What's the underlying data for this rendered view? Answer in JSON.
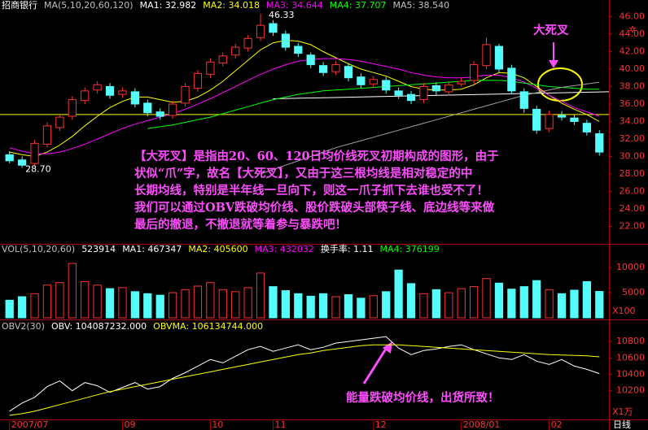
{
  "chart_data": [
    {
      "type": "candlestick",
      "legend": [
        {
          "text": "招商银行",
          "color": "#ffffff"
        },
        {
          "text": "MA(5,10,20,60,120)",
          "color": "#c0c0c0"
        },
        {
          "text": "MA1: 32.982",
          "color": "#ffffff"
        },
        {
          "text": "MA2: 34.018",
          "color": "#ffff00"
        },
        {
          "text": "MA3: 34.644",
          "color": "#ff00ff"
        },
        {
          "text": "MA4: 37.707",
          "color": "#00ff00"
        },
        {
          "text": "MA5: 38.540",
          "color": "#c0c0c0"
        }
      ],
      "xlim": [
        -0.76,
        47.76
      ],
      "ylim": [
        20,
        46.6
      ],
      "yticks": [
        {
          "value": 22,
          "label": "22.00"
        },
        {
          "value": 24,
          "label": "24.00"
        },
        {
          "value": 26,
          "label": "26.00"
        },
        {
          "value": 28,
          "label": "28.00"
        },
        {
          "value": 30,
          "label": "30.00"
        },
        {
          "value": 32,
          "label": "32.00"
        },
        {
          "value": 34,
          "label": "34.00"
        },
        {
          "value": 36,
          "label": "36.00"
        },
        {
          "value": 38,
          "label": "38.00"
        },
        {
          "value": 40,
          "label": "40.00"
        },
        {
          "value": 42,
          "label": "42.00"
        },
        {
          "value": 44,
          "label": "44.00"
        },
        {
          "value": 46,
          "label": "46.00"
        }
      ],
      "up_color": "#ff3232",
      "down_color": "#54fcfc",
      "open": [
        30.2,
        29.6,
        29.2,
        31.4,
        33.3,
        34.6,
        36.4,
        37.6,
        38.0,
        37.1,
        37.4,
        36.1,
        35.1,
        34.7,
        36.1,
        37.8,
        39.4,
        40.7,
        41.6,
        42.4,
        43.6,
        45.2,
        44.0,
        42.6,
        41.6,
        40.4,
        39.7,
        40.3,
        39.1,
        38.3,
        38.7,
        37.5,
        37.1,
        36.5,
        38.1,
        37.4,
        38.3,
        38.7,
        40.4,
        42.6,
        40.1,
        37.4,
        35.4,
        33.2,
        34.7,
        34.4,
        33.8,
        32.6
      ],
      "high": [
        30.6,
        30.0,
        31.9,
        33.9,
        34.9,
        36.9,
        37.9,
        38.6,
        38.4,
        37.9,
        37.8,
        36.5,
        35.5,
        36.4,
        38.4,
        39.9,
        41.2,
        41.9,
        42.9,
        43.9,
        46.33,
        45.6,
        44.4,
        43.0,
        41.9,
        40.8,
        40.9,
        40.7,
        39.5,
        39.2,
        39.1,
        37.9,
        37.5,
        38.4,
        38.5,
        38.6,
        39.0,
        40.9,
        43.6,
        42.9,
        40.5,
        37.8,
        35.8,
        35.2,
        35.2,
        34.8,
        34.2,
        33.0
      ],
      "low": [
        29.2,
        28.7,
        28.9,
        31.0,
        32.9,
        34.2,
        36.0,
        37.2,
        36.6,
        36.7,
        35.6,
        34.6,
        34.2,
        34.3,
        35.7,
        37.4,
        39.0,
        40.3,
        41.2,
        42.0,
        43.2,
        43.8,
        42.1,
        41.4,
        40.1,
        39.2,
        39.3,
        38.6,
        37.8,
        37.9,
        37.2,
        36.6,
        36.0,
        36.1,
        37.0,
        37.0,
        38.0,
        38.3,
        40.0,
        39.6,
        37.1,
        35.0,
        32.6,
        32.8,
        34.1,
        33.6,
        32.4,
        30.1
      ],
      "close": [
        29.5,
        29.0,
        31.5,
        33.5,
        34.5,
        36.5,
        37.5,
        38.2,
        37.0,
        37.5,
        36.0,
        35.0,
        34.6,
        36.0,
        38.0,
        39.5,
        40.8,
        41.5,
        42.5,
        43.5,
        45.0,
        44.2,
        42.5,
        41.8,
        40.5,
        39.6,
        40.5,
        39.0,
        38.2,
        38.8,
        37.6,
        37.0,
        36.4,
        38.0,
        37.5,
        38.2,
        38.6,
        40.5,
        42.8,
        40.0,
        37.5,
        35.5,
        33.0,
        34.8,
        34.5,
        34.0,
        32.8,
        30.5
      ],
      "series": [
        {
          "color": "#ffff00",
          "values": [
            30.5,
            30.2,
            30.0,
            30.5,
            31.3,
            32.3,
            33.5,
            34.6,
            35.6,
            36.3,
            36.8,
            36.8,
            36.5,
            36.2,
            36.3,
            36.8,
            37.6,
            38.6,
            39.8,
            41.0,
            42.2,
            43.0,
            43.3,
            43.2,
            42.8,
            42.0,
            41.3,
            40.6,
            40.0,
            39.6,
            39.2,
            38.6,
            38.0,
            37.7,
            37.6,
            37.6,
            37.7,
            38.2,
            39.0,
            39.6,
            39.5,
            39.0,
            38.0,
            37.0,
            36.1,
            35.4,
            34.8,
            34.0
          ]
        },
        {
          "color": "#ff00ff",
          "values": [
            31.0,
            30.6,
            30.3,
            30.3,
            30.5,
            30.9,
            31.4,
            32.0,
            32.6,
            33.2,
            33.7,
            34.1,
            34.5,
            34.9,
            35.4,
            36.0,
            36.6,
            37.3,
            38.0,
            38.7,
            39.4,
            40.0,
            40.5,
            40.9,
            41.1,
            41.2,
            41.2,
            41.1,
            40.9,
            40.6,
            40.3,
            40.0,
            39.6,
            39.3,
            39.1,
            39.0,
            39.0,
            39.1,
            39.3,
            39.3,
            39.0,
            38.5,
            37.8,
            37.0,
            36.3,
            35.6,
            35.1,
            34.6
          ]
        },
        {
          "color": "#00ff00",
          "values": [
            null,
            null,
            null,
            null,
            null,
            null,
            null,
            null,
            null,
            null,
            null,
            33.2,
            33.4,
            33.6,
            33.9,
            34.2,
            34.5,
            34.9,
            35.3,
            35.7,
            36.1,
            36.5,
            36.8,
            37.1,
            37.3,
            37.5,
            37.6,
            37.7,
            37.8,
            37.9,
            38.0,
            38.1,
            38.2,
            38.3,
            38.4,
            38.5,
            38.6,
            38.7,
            38.7,
            38.7,
            38.6,
            38.4,
            38.2,
            38.0,
            37.9,
            37.8,
            37.7,
            37.7
          ]
        },
        {
          "color": "#a0a0a0",
          "values": [
            null,
            null,
            null,
            null,
            null,
            null,
            null,
            null,
            null,
            null,
            null,
            null,
            null,
            null,
            null,
            null,
            null,
            null,
            null,
            null,
            28.0,
            28.5,
            29.0,
            29.5,
            30.0,
            30.5,
            31.0,
            31.4,
            31.8,
            32.2,
            32.6,
            33.0,
            33.4,
            33.8,
            34.2,
            34.6,
            35.0,
            35.4,
            35.8,
            36.2,
            36.6,
            37.0,
            37.3,
            37.6,
            37.9,
            38.1,
            38.3,
            38.5
          ]
        }
      ],
      "hline": {
        "value": 34.8,
        "color": "#ffff00"
      },
      "trendline": {
        "x": [
          21,
          47.76
        ],
        "y": [
          36.6,
          37.4
        ],
        "color": "#ffffff"
      },
      "high_marker": {
        "index": 20,
        "value": 46.33
      },
      "low_marker": {
        "index": 1,
        "value": 28.7,
        "label": "28.70"
      },
      "callout": "大死叉",
      "annotation": [
        "【大死叉】是指由20、60、120日均价线死叉初期构成的图形，由于",
        "状似“爪”字，故名【大死叉】，又由于这三根均线是相对稳定的中",
        "长期均线，特别是半年线一旦向下，则这一爪子抓下去谁也受不了！",
        "我们可以通过OBV跌破均价线、股价跌破头部筷子线、底边线等来做",
        "最后的撤退，不撤退就等着参与暴跌吧！"
      ]
    },
    {
      "type": "bar",
      "legend": [
        {
          "text": "VOL(5,10,20,60)",
          "color": "#c0c0c0"
        },
        {
          "text": "523914",
          "color": "#ffffff"
        },
        {
          "text": "MA1: 467347",
          "color": "#ffffff"
        },
        {
          "text": "MA2: 405600",
          "color": "#ffff00"
        },
        {
          "text": "MA3: 432032",
          "color": "#ff00ff"
        },
        {
          "text": "换手率: 1.11",
          "color": "#ffffff"
        },
        {
          "text": "MA4: 376199",
          "color": "#00ff00"
        }
      ],
      "xlim": [
        -0.76,
        47.76
      ],
      "ylim": [
        0,
        12600
      ],
      "yticks": [
        5000,
        10000
      ],
      "unit": "X100",
      "values": [
        3500,
        4200,
        4800,
        6500,
        7000,
        10800,
        7200,
        6500,
        5800,
        6000,
        5200,
        4800,
        4500,
        5000,
        5600,
        6300,
        7000,
        5600,
        5200,
        6000,
        8900,
        6200,
        5400,
        4800,
        4300,
        4800,
        4200,
        4600,
        3900,
        4400,
        5200,
        9500,
        6800,
        4800,
        5600,
        5000,
        5800,
        6200,
        7800,
        6900,
        5700,
        6200,
        7400,
        5600,
        4800,
        5500,
        7200,
        5239
      ]
    },
    {
      "type": "line",
      "legend": [
        {
          "text": "OBV2(30)",
          "color": "#c0c0c0"
        },
        {
          "text": "OBV: 104087232.000",
          "color": "#ffffff"
        },
        {
          "text": "OBVMA: 106134744.000",
          "color": "#ffff00"
        }
      ],
      "xlim": [
        -0.76,
        47.76
      ],
      "ylim": [
        9860,
        10920
      ],
      "yticks": [
        10200,
        10400,
        10600,
        10800
      ],
      "unit": "X1万",
      "xticks": [
        {
          "value": 0,
          "label": "2007/07"
        },
        {
          "value": 9,
          "label": "09"
        },
        {
          "value": 16,
          "label": "10"
        },
        {
          "value": 21,
          "label": "11"
        },
        {
          "value": 29,
          "label": "12"
        },
        {
          "value": 36,
          "label": "2008/01"
        },
        {
          "value": 43,
          "label": "02"
        }
      ],
      "period": "日线",
      "series": [
        {
          "color": "#ffffff",
          "values": [
            9950,
            10050,
            10120,
            10250,
            10320,
            10200,
            10300,
            10260,
            10180,
            10240,
            10300,
            10220,
            10250,
            10350,
            10420,
            10500,
            10580,
            10540,
            10620,
            10700,
            10740,
            10680,
            10720,
            10760,
            10700,
            10730,
            10780,
            10800,
            10820,
            10840,
            10860,
            10720,
            10640,
            10690,
            10710,
            10740,
            10760,
            10700,
            10650,
            10600,
            10580,
            10640,
            10560,
            10520,
            10580,
            10500,
            10460,
            10409
          ]
        },
        {
          "color": "#ffff00",
          "values": [
            9900,
            9920,
            9950,
            9990,
            10030,
            10070,
            10110,
            10150,
            10190,
            10220,
            10250,
            10280,
            10310,
            10340,
            10370,
            10400,
            10430,
            10460,
            10490,
            10520,
            10550,
            10580,
            10610,
            10640,
            10660,
            10690,
            10710,
            10730,
            10750,
            10760,
            10760,
            10760,
            10750,
            10740,
            10730,
            10720,
            10710,
            10700,
            10690,
            10680,
            10670,
            10660,
            10650,
            10640,
            10635,
            10630,
            10625,
            10613
          ]
        }
      ],
      "annotation": "能量跌破均价线，出货所致！"
    }
  ]
}
